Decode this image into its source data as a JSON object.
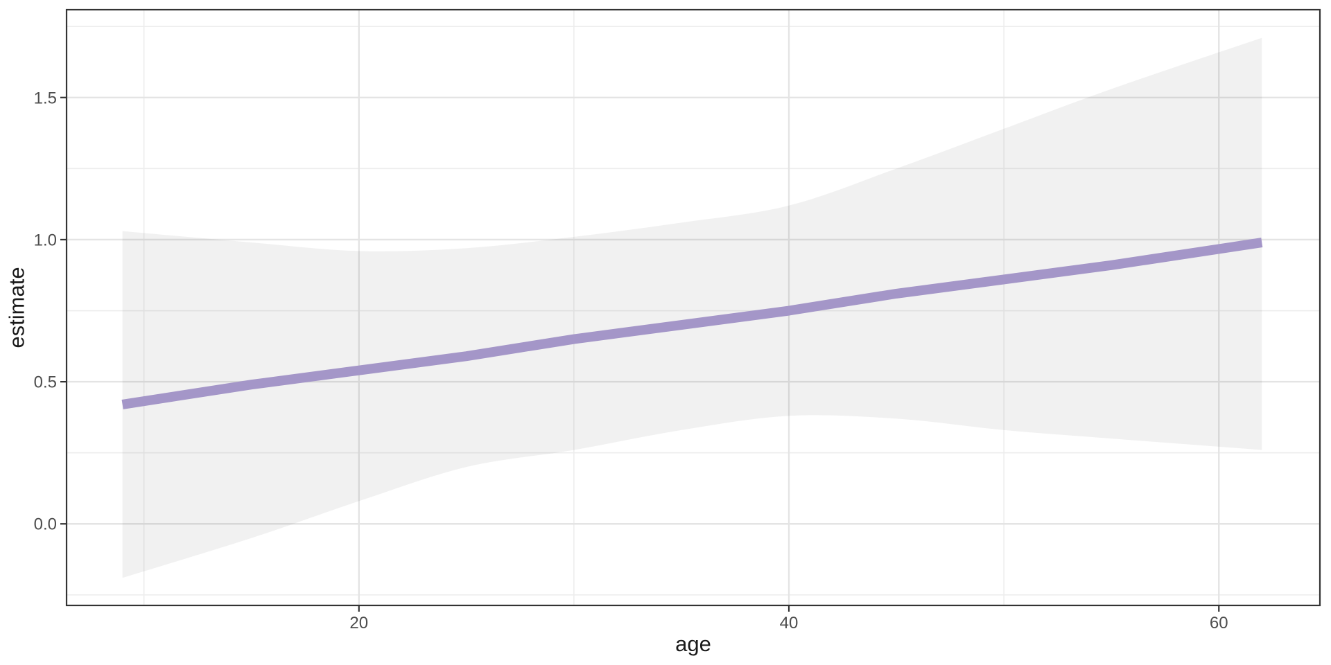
{
  "figure": {
    "background": "#ffffff"
  },
  "chart_data": {
    "type": "line",
    "title": "",
    "xlabel": "age",
    "ylabel": "estimate",
    "x_range": [
      6.4,
      64.7
    ],
    "y_range": [
      -0.287,
      1.809
    ],
    "x_ticks": [
      20,
      40,
      60
    ],
    "x_minor_ticks": [
      10,
      30,
      50
    ],
    "y_ticks": [
      {
        "value": 0.0,
        "label": "0.0"
      },
      {
        "value": 0.5,
        "label": "0.5"
      },
      {
        "value": 1.0,
        "label": "1.0"
      },
      {
        "value": 1.5,
        "label": "1.5"
      }
    ],
    "y_minor_ticks": [
      -0.25,
      0.25,
      0.75,
      1.25,
      1.75
    ],
    "grid": "on",
    "legend": "none",
    "series": [
      {
        "name": "confidence-ribbon",
        "type": "area",
        "fill": "#000000",
        "fill_opacity": 0.053,
        "x": [
          9,
          15,
          20,
          25,
          30,
          35,
          40,
          45,
          50,
          55,
          62
        ],
        "upper": [
          1.03,
          0.99,
          0.96,
          0.97,
          1.01,
          1.06,
          1.12,
          1.25,
          1.39,
          1.53,
          1.71
        ],
        "lower": [
          -0.19,
          -0.05,
          0.08,
          0.2,
          0.26,
          0.33,
          0.38,
          0.37,
          0.33,
          0.3,
          0.26
        ]
      },
      {
        "name": "fitted-line",
        "type": "line",
        "color": "#A496C8",
        "width": 14,
        "x": [
          9,
          15,
          20,
          25,
          30,
          35,
          40,
          45,
          50,
          55,
          62
        ],
        "y": [
          0.42,
          0.49,
          0.54,
          0.59,
          0.65,
          0.7,
          0.75,
          0.81,
          0.86,
          0.91,
          0.99
        ]
      }
    ]
  },
  "style": {
    "panel_background": "#ffffff",
    "panel_border_color": "#333333",
    "grid_major_color": "#e4e4e4",
    "grid_minor_color": "#ededed",
    "tick_mark_color": "#333333",
    "tick_label_color": "#4d4d4d",
    "axis_title_color": "#1a1a1a"
  }
}
